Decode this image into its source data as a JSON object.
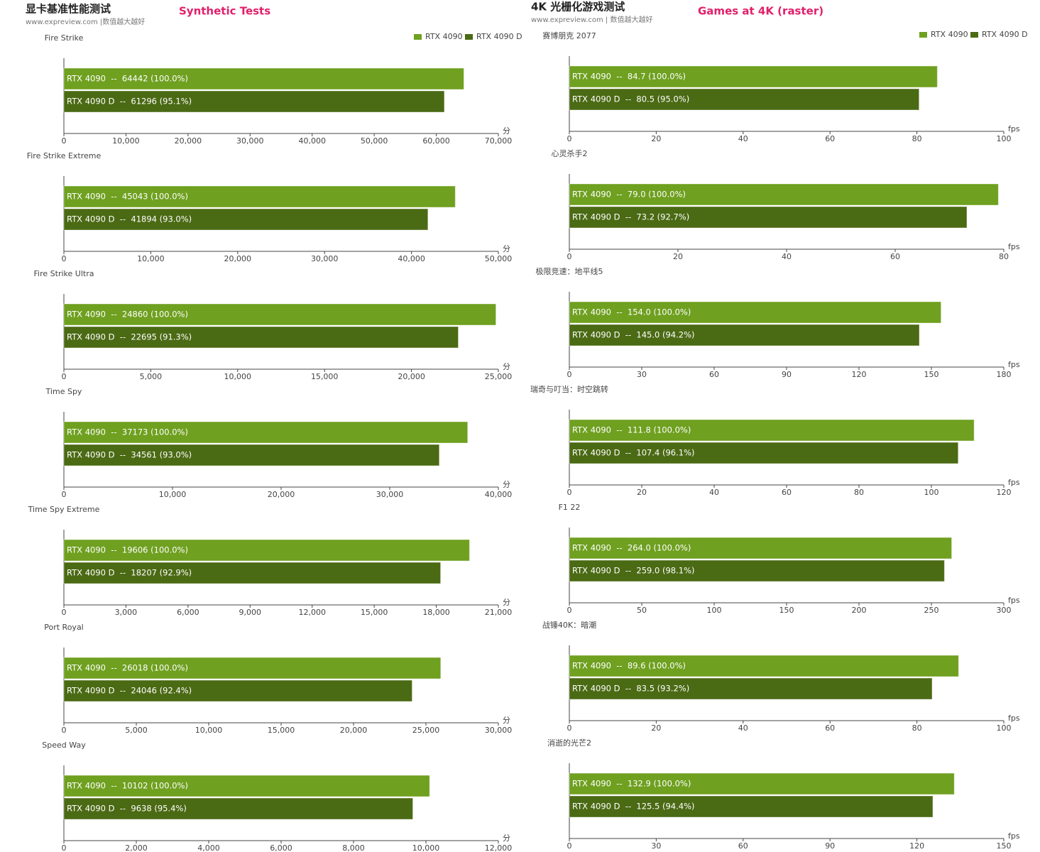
{
  "header": {
    "left": {
      "title": "显卡基准性能测试",
      "source": "www.expreview.com |数值越大越好",
      "subtitle": "Synthetic Tests"
    },
    "right": {
      "title": "4K 光栅化游戏测试",
      "source": "www.expreview.com | 数值越大越好",
      "subtitle": "Games at 4K (raster)"
    }
  },
  "chart_data": [
    {
      "type": "bar",
      "title": "Fire Strike",
      "xlabel": "分",
      "legend": "top-right",
      "series": [
        {
          "name": "RTX 4090",
          "color": "#6fa020",
          "values": [
            64442
          ],
          "value_labels": [
            "RTX 4090  --  64442 (100.0%)"
          ]
        },
        {
          "name": "RTX 4090 D",
          "color": "#4b6a14",
          "values": [
            61296
          ],
          "value_labels": [
            "RTX 4090 D  --  61296 (95.1%)"
          ]
        }
      ],
      "xlim": [
        0,
        70000
      ],
      "xticks": [
        0,
        {
          "value": 10000,
          "label": "10,000"
        },
        {
          "value": 20000,
          "label": "20,000"
        },
        {
          "value": 30000,
          "label": "30,000"
        },
        {
          "value": 40000,
          "label": "40,000"
        },
        {
          "value": 50000,
          "label": "50,000"
        },
        {
          "value": 60000,
          "label": "60,000"
        },
        {
          "value": 70000,
          "label": "70,000"
        }
      ]
    },
    {
      "type": "bar",
      "title": "Fire Strike Extreme",
      "xlabel": "分",
      "series": [
        {
          "name": "RTX 4090",
          "color": "#6fa020",
          "values": [
            45043
          ],
          "value_labels": [
            "RTX 4090  --  45043 (100.0%)"
          ]
        },
        {
          "name": "RTX 4090 D",
          "color": "#4b6a14",
          "values": [
            41894
          ],
          "value_labels": [
            "RTX 4090 D  --  41894 (93.0%)"
          ]
        }
      ],
      "xlim": [
        0,
        50000
      ],
      "xticks": [
        0,
        {
          "value": 10000,
          "label": "10,000"
        },
        {
          "value": 20000,
          "label": "20,000"
        },
        {
          "value": 30000,
          "label": "30,000"
        },
        {
          "value": 40000,
          "label": "40,000"
        },
        {
          "value": 50000,
          "label": "50,000"
        }
      ]
    },
    {
      "type": "bar",
      "title": "Fire Strike Ultra",
      "xlabel": "分",
      "series": [
        {
          "name": "RTX 4090",
          "color": "#6fa020",
          "values": [
            24860
          ],
          "value_labels": [
            "RTX 4090  --  24860 (100.0%)"
          ]
        },
        {
          "name": "RTX 4090 D",
          "color": "#4b6a14",
          "values": [
            22695
          ],
          "value_labels": [
            "RTX 4090 D  --  22695 (91.3%)"
          ]
        }
      ],
      "xlim": [
        0,
        25000
      ],
      "xticks": [
        0,
        {
          "value": 5000,
          "label": "5,000"
        },
        {
          "value": 10000,
          "label": "10,000"
        },
        {
          "value": 15000,
          "label": "15,000"
        },
        {
          "value": 20000,
          "label": "20,000"
        },
        {
          "value": 25000,
          "label": "25,000"
        }
      ]
    },
    {
      "type": "bar",
      "title": "Time Spy",
      "xlabel": "分",
      "series": [
        {
          "name": "RTX 4090",
          "color": "#6fa020",
          "values": [
            37173
          ],
          "value_labels": [
            "RTX 4090  --  37173 (100.0%)"
          ]
        },
        {
          "name": "RTX 4090 D",
          "color": "#4b6a14",
          "values": [
            34561
          ],
          "value_labels": [
            "RTX 4090 D  --  34561 (93.0%)"
          ]
        }
      ],
      "xlim": [
        0,
        40000
      ],
      "xticks": [
        0,
        {
          "value": 10000,
          "label": "10,000"
        },
        {
          "value": 20000,
          "label": "20,000"
        },
        {
          "value": 30000,
          "label": "30,000"
        },
        {
          "value": 40000,
          "label": "40,000"
        }
      ]
    },
    {
      "type": "bar",
      "title": "Time Spy Extreme",
      "xlabel": "分",
      "series": [
        {
          "name": "RTX 4090",
          "color": "#6fa020",
          "values": [
            19606
          ],
          "value_labels": [
            "RTX 4090  --  19606 (100.0%)"
          ]
        },
        {
          "name": "RTX 4090 D",
          "color": "#4b6a14",
          "values": [
            18207
          ],
          "value_labels": [
            "RTX 4090 D  --  18207 (92.9%)"
          ]
        }
      ],
      "xlim": [
        0,
        21000
      ],
      "xticks": [
        0,
        {
          "value": 3000,
          "label": "3,000"
        },
        {
          "value": 6000,
          "label": "6,000"
        },
        {
          "value": 9000,
          "label": "9,000"
        },
        {
          "value": 12000,
          "label": "12,000"
        },
        {
          "value": 15000,
          "label": "15,000"
        },
        {
          "value": 18000,
          "label": "18,000"
        },
        {
          "value": 21000,
          "label": "21,000"
        }
      ]
    },
    {
      "type": "bar",
      "title": "Port Royal",
      "xlabel": "分",
      "series": [
        {
          "name": "RTX 4090",
          "color": "#6fa020",
          "values": [
            26018
          ],
          "value_labels": [
            "RTX 4090  --  26018 (100.0%)"
          ]
        },
        {
          "name": "RTX 4090 D",
          "color": "#4b6a14",
          "values": [
            24046
          ],
          "value_labels": [
            "RTX 4090 D  --  24046 (92.4%)"
          ]
        }
      ],
      "xlim": [
        0,
        30000
      ],
      "xticks": [
        0,
        {
          "value": 5000,
          "label": "5,000"
        },
        {
          "value": 10000,
          "label": "10,000"
        },
        {
          "value": 15000,
          "label": "15,000"
        },
        {
          "value": 20000,
          "label": "20,000"
        },
        {
          "value": 25000,
          "label": "25,000"
        },
        {
          "value": 30000,
          "label": "30,000"
        }
      ]
    },
    {
      "type": "bar",
      "title": "Speed Way",
      "xlabel": "分",
      "series": [
        {
          "name": "RTX 4090",
          "color": "#6fa020",
          "values": [
            10102
          ],
          "value_labels": [
            "RTX 4090  --  10102 (100.0%)"
          ]
        },
        {
          "name": "RTX 4090 D",
          "color": "#4b6a14",
          "values": [
            9638
          ],
          "value_labels": [
            "RTX 4090 D  --  9638 (95.4%)"
          ]
        }
      ],
      "xlim": [
        0,
        12000
      ],
      "xticks": [
        0,
        {
          "value": 2000,
          "label": "2,000"
        },
        {
          "value": 4000,
          "label": "4,000"
        },
        {
          "value": 6000,
          "label": "6,000"
        },
        {
          "value": 8000,
          "label": "8,000"
        },
        {
          "value": 10000,
          "label": "10,000"
        },
        {
          "value": 12000,
          "label": "12,000"
        }
      ]
    },
    {
      "type": "bar",
      "title": "赛博朋克 2077",
      "xlabel": "fps",
      "legend": "top-right",
      "series": [
        {
          "name": "RTX 4090",
          "color": "#6fa020",
          "values": [
            84.7
          ],
          "value_labels": [
            "RTX 4090  --  84.7 (100.0%)"
          ]
        },
        {
          "name": "RTX 4090 D",
          "color": "#4b6a14",
          "values": [
            80.5
          ],
          "value_labels": [
            "RTX 4090 D  --  80.5 (95.0%)"
          ]
        }
      ],
      "xlim": [
        0,
        100
      ],
      "xticks": [
        0,
        20,
        40,
        60,
        80,
        100
      ]
    },
    {
      "type": "bar",
      "title": "心灵杀手2",
      "xlabel": "fps",
      "series": [
        {
          "name": "RTX 4090",
          "color": "#6fa020",
          "values": [
            79.0
          ],
          "value_labels": [
            "RTX 4090  --  79.0 (100.0%)"
          ]
        },
        {
          "name": "RTX 4090 D",
          "color": "#4b6a14",
          "values": [
            73.2
          ],
          "value_labels": [
            "RTX 4090 D  --  73.2 (92.7%)"
          ]
        }
      ],
      "xlim": [
        0,
        80
      ],
      "xticks": [
        0,
        20,
        40,
        60,
        80
      ]
    },
    {
      "type": "bar",
      "title": "极限竞速：地平线5",
      "xlabel": "fps",
      "series": [
        {
          "name": "RTX 4090",
          "color": "#6fa020",
          "values": [
            154.0
          ],
          "value_labels": [
            "RTX 4090  --  154.0 (100.0%)"
          ]
        },
        {
          "name": "RTX 4090 D",
          "color": "#4b6a14",
          "values": [
            145.0
          ],
          "value_labels": [
            "RTX 4090 D  --  145.0 (94.2%)"
          ]
        }
      ],
      "xlim": [
        0,
        180
      ],
      "xticks": [
        0,
        30,
        60,
        90,
        120,
        150,
        180
      ]
    },
    {
      "type": "bar",
      "title": "瑞奇与叮当：时空跳转",
      "xlabel": "fps",
      "series": [
        {
          "name": "RTX 4090",
          "color": "#6fa020",
          "values": [
            111.8
          ],
          "value_labels": [
            "RTX 4090  --  111.8 (100.0%)"
          ]
        },
        {
          "name": "RTX 4090 D",
          "color": "#4b6a14",
          "values": [
            107.4
          ],
          "value_labels": [
            "RTX 4090 D  --  107.4 (96.1%)"
          ]
        }
      ],
      "xlim": [
        0,
        120
      ],
      "xticks": [
        0,
        20,
        40,
        60,
        80,
        100,
        120
      ]
    },
    {
      "type": "bar",
      "title": "F1 22",
      "xlabel": "fps",
      "series": [
        {
          "name": "RTX 4090",
          "color": "#6fa020",
          "values": [
            264.0
          ],
          "value_labels": [
            "RTX 4090  --  264.0 (100.0%)"
          ]
        },
        {
          "name": "RTX 4090 D",
          "color": "#4b6a14",
          "values": [
            259.0
          ],
          "value_labels": [
            "RTX 4090 D  --  259.0 (98.1%)"
          ]
        }
      ],
      "xlim": [
        0,
        300
      ],
      "xticks": [
        0,
        50,
        100,
        150,
        200,
        250,
        300
      ]
    },
    {
      "type": "bar",
      "title": "战锤40K：暗潮",
      "xlabel": "fps",
      "series": [
        {
          "name": "RTX 4090",
          "color": "#6fa020",
          "values": [
            89.6
          ],
          "value_labels": [
            "RTX 4090  --  89.6 (100.0%)"
          ]
        },
        {
          "name": "RTX 4090 D",
          "color": "#4b6a14",
          "values": [
            83.5
          ],
          "value_labels": [
            "RTX 4090 D  --  83.5 (93.2%)"
          ]
        }
      ],
      "xlim": [
        0,
        100
      ],
      "xticks": [
        0,
        20,
        40,
        60,
        80,
        100
      ]
    },
    {
      "type": "bar",
      "title": "消逝的光芒2",
      "xlabel": "fps",
      "series": [
        {
          "name": "RTX 4090",
          "color": "#6fa020",
          "values": [
            132.9
          ],
          "value_labels": [
            "RTX 4090  --  132.9 (100.0%)"
          ]
        },
        {
          "name": "RTX 4090 D",
          "color": "#4b6a14",
          "values": [
            125.5
          ],
          "value_labels": [
            "RTX 4090 D  --  125.5 (94.4%)"
          ]
        }
      ],
      "xlim": [
        0,
        150
      ],
      "xticks": [
        0,
        30,
        60,
        90,
        120,
        150
      ]
    }
  ]
}
